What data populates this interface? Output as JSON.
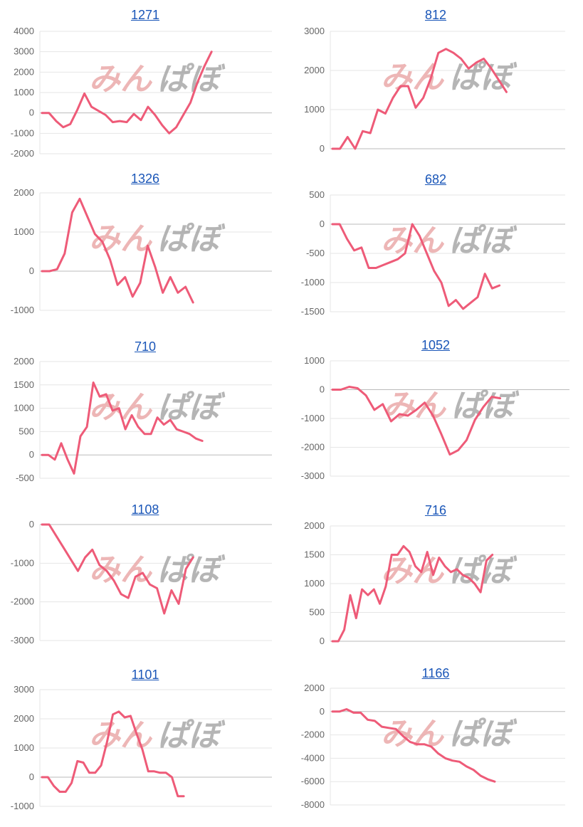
{
  "colors": {
    "line": "#ee5b78",
    "grid": "#e6e6e6",
    "axis": "#bbbbbb",
    "tick": "#666666",
    "link": "#1a56b8",
    "watermark_a": "#e8a4a4",
    "watermark_b": "#9c9c9c"
  },
  "watermark": {
    "part_a": "みん",
    "part_b": "ぱぼ"
  },
  "chart_data": [
    {
      "type": "line",
      "title": "1271",
      "yticks": [
        4000,
        3000,
        2000,
        1000,
        0,
        -1000,
        -2000
      ],
      "ylim": [
        -2000,
        4000
      ],
      "values": [
        0,
        0,
        -400,
        -700,
        -550,
        150,
        950,
        300,
        100,
        -100,
        -450,
        -400,
        -450,
        -50,
        -350,
        300,
        -100,
        -600,
        -1000,
        -700,
        -100,
        500,
        1500,
        2300,
        3000
      ]
    },
    {
      "type": "line",
      "title": "812",
      "yticks": [
        3000,
        2000,
        1000,
        0
      ],
      "ylim": [
        0,
        3000
      ],
      "values": [
        0,
        0,
        300,
        0,
        450,
        400,
        1000,
        900,
        1300,
        1600,
        1600,
        1050,
        1300,
        1800,
        2450,
        2550,
        2450,
        2300,
        2050,
        2200,
        2300,
        2050,
        1750,
        1450
      ]
    },
    {
      "type": "line",
      "title": "1326",
      "yticks": [
        2000,
        1000,
        0,
        -1000
      ],
      "ylim": [
        -1000,
        2000
      ],
      "values": [
        0,
        0,
        50,
        450,
        1500,
        1850,
        1400,
        950,
        750,
        300,
        -350,
        -150,
        -650,
        -300,
        650,
        100,
        -550,
        -150,
        -550,
        -400,
        -800
      ]
    },
    {
      "type": "line",
      "title": "682",
      "yticks": [
        500,
        0,
        -500,
        -1000,
        -1500
      ],
      "ylim": [
        -1500,
        500
      ],
      "values": [
        0,
        0,
        -250,
        -450,
        -400,
        -750,
        -750,
        -700,
        -650,
        -600,
        -500,
        0,
        -200,
        -500,
        -800,
        -1000,
        -1400,
        -1300,
        -1450,
        -1350,
        -1250,
        -850,
        -1100,
        -1050
      ]
    },
    {
      "type": "line",
      "title": "710",
      "yticks": [
        2000,
        1500,
        1000,
        500,
        0,
        -500
      ],
      "ylim": [
        -500,
        2000
      ],
      "values": [
        0,
        0,
        -100,
        250,
        -100,
        -400,
        400,
        600,
        1550,
        1250,
        1300,
        950,
        1000,
        550,
        850,
        600,
        450,
        450,
        800,
        650,
        750,
        550,
        500,
        450,
        350,
        300
      ]
    },
    {
      "type": "line",
      "title": "1052",
      "yticks": [
        1000,
        0,
        -1000,
        -2000,
        -3000
      ],
      "ylim": [
        -3000,
        1000
      ],
      "values": [
        0,
        0,
        100,
        50,
        -200,
        -700,
        -500,
        -1100,
        -850,
        -900,
        -700,
        -450,
        -900,
        -1550,
        -2250,
        -2100,
        -1750,
        -1050,
        -600,
        -250,
        -300
      ]
    },
    {
      "type": "line",
      "title": "1108",
      "yticks": [
        0,
        -1000,
        -2000,
        -3000
      ],
      "ylim": [
        -3000,
        0
      ],
      "values": [
        0,
        0,
        -300,
        -600,
        -900,
        -1200,
        -850,
        -650,
        -1050,
        -1200,
        -1450,
        -1800,
        -1900,
        -1350,
        -1250,
        -1550,
        -1650,
        -2300,
        -1700,
        -2050,
        -1150,
        -850
      ]
    },
    {
      "type": "line",
      "title": "716",
      "yticks": [
        2000,
        1500,
        1000,
        500,
        0
      ],
      "ylim": [
        0,
        2000
      ],
      "values": [
        0,
        0,
        200,
        800,
        400,
        900,
        800,
        900,
        650,
        950,
        1500,
        1500,
        1650,
        1550,
        1300,
        1200,
        1550,
        1150,
        1450,
        1300,
        1200,
        1250,
        1150,
        1100,
        1000,
        850,
        1400,
        1500
      ]
    },
    {
      "type": "line",
      "title": "1101",
      "yticks": [
        3000,
        2000,
        1000,
        0,
        -1000
      ],
      "ylim": [
        -1000,
        3000
      ],
      "values": [
        0,
        0,
        -300,
        -500,
        -500,
        -200,
        550,
        500,
        150,
        150,
        400,
        1200,
        2150,
        2250,
        2050,
        2100,
        1500,
        950,
        200,
        200,
        150,
        150,
        0,
        -650,
        -650
      ]
    },
    {
      "type": "line",
      "title": "1166",
      "yticks": [
        2000,
        0,
        -2000,
        -4000,
        -6000,
        -8000
      ],
      "ylim": [
        -8000,
        2000
      ],
      "values": [
        0,
        0,
        200,
        -100,
        -100,
        -700,
        -800,
        -1300,
        -1400,
        -1500,
        -2100,
        -2600,
        -2800,
        -2800,
        -3000,
        -3600,
        -4000,
        -4200,
        -4300,
        -4700,
        -5000,
        -5500,
        -5800,
        -6000
      ]
    }
  ]
}
